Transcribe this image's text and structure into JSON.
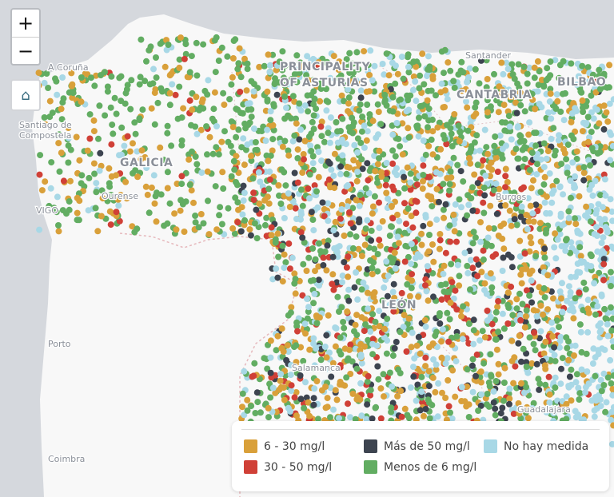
{
  "map": {
    "labels": {
      "a_coruna": "A Coruña",
      "santiago_1": "Santiago de",
      "santiago_2": "Compostela",
      "galicia": "GALICIA",
      "ourense": "Ourense",
      "vigo": "VIGO",
      "asturias_1": "PRINCIPALITY",
      "asturias_2": "OF ASTURIAS",
      "santander": "Santander",
      "cantabria": "CANTABRIA",
      "bilbao": "BILBAO",
      "burgos": "Burgos",
      "leon": "LEÓN",
      "salamanca": "Salamanca",
      "guadalajara": "Guadalajara",
      "porto": "Porto",
      "coimbra": "Coimbra"
    },
    "colors": {
      "sea": "#d5d8dd",
      "land": "#f8f8f8",
      "c6_30": "#d9a03a",
      "c30_50": "#d04037",
      "over50": "#3d4450",
      "under6": "#62ad62",
      "none": "#a8d8e6"
    }
  },
  "controls": {
    "zoom_in": "+",
    "zoom_out": "−",
    "home_icon": "⌂"
  },
  "legend": {
    "items": [
      {
        "label": "6 - 30 mg/l",
        "color": "#d9a03a"
      },
      {
        "label": "30 - 50 mg/l",
        "color": "#d04037"
      },
      {
        "label": "Más de 50 mg/l",
        "color": "#3d4450"
      },
      {
        "label": "Menos de 6 mg/l",
        "color": "#62ad62"
      },
      {
        "label": "No hay medida",
        "color": "#a8d8e6"
      }
    ]
  }
}
